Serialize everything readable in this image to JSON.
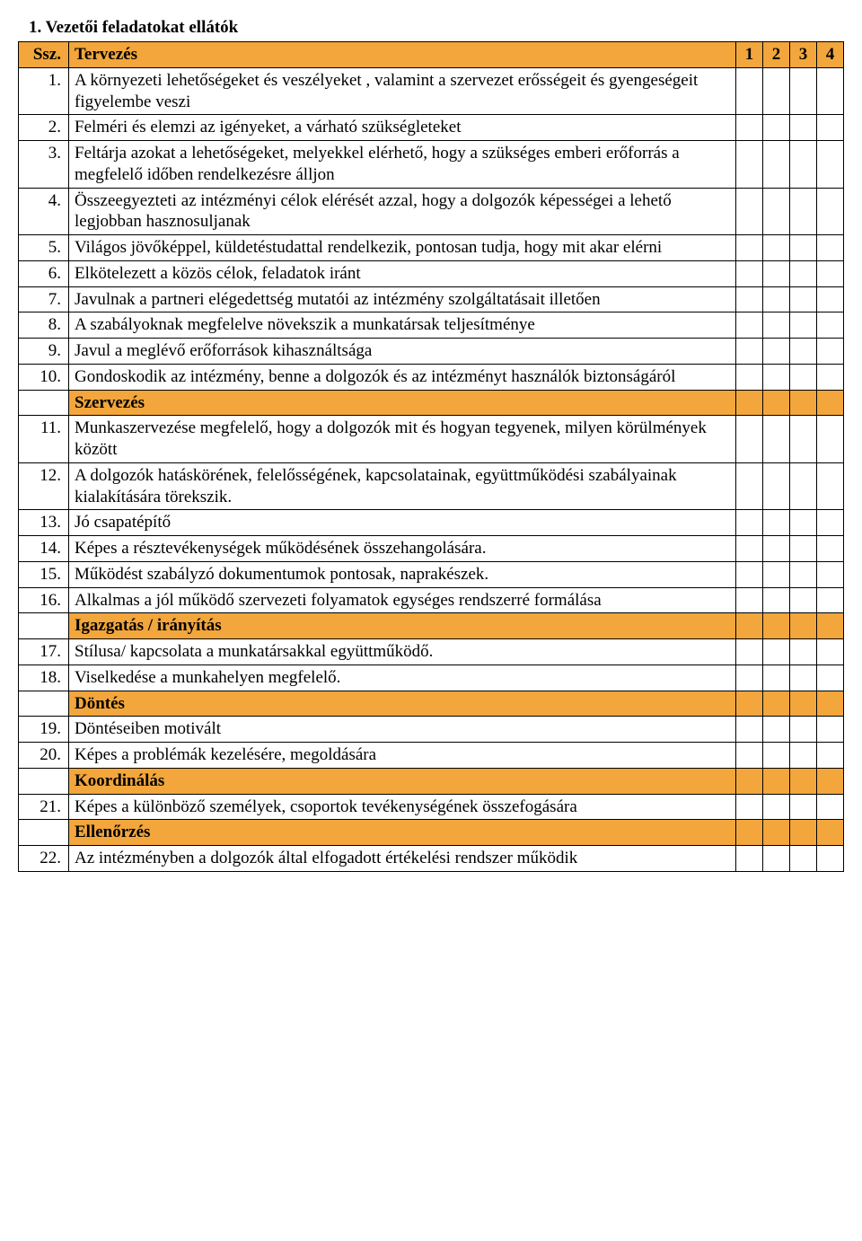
{
  "heading": "1. Vezetői feladatokat ellátók",
  "header": {
    "num": "Ssz.",
    "text": "Tervezés",
    "s1": "1",
    "s2": "2",
    "s3": "3",
    "s4": "4"
  },
  "rows": [
    {
      "num": "1.",
      "text": "A környezeti lehetőségeket és veszélyeket , valamint a szervezet erősségeit és gyengeségeit figyelembe veszi"
    },
    {
      "num": "2.",
      "text": "Felméri és elemzi az igényeket, a várható szükségleteket"
    },
    {
      "num": "3.",
      "text": "Feltárja azokat a lehetőségeket, melyekkel elérhető, hogy a szükséges emberi erőforrás a megfelelő időben rendelkezésre álljon"
    },
    {
      "num": "4.",
      "text": "Összeegyezteti az intézményi célok elérését azzal, hogy a dolgozók képességei a lehető legjobban hasznosuljanak"
    },
    {
      "num": "5.",
      "text": "Világos jövőképpel, küldetéstudattal rendelkezik, pontosan tudja, hogy mit akar elérni"
    },
    {
      "num": "6.",
      "text": "Elkötelezett a közös célok, feladatok iránt"
    },
    {
      "num": "7.",
      "text": "Javulnak a partneri elégedettség mutatói az intézmény szolgáltatásait illetően"
    },
    {
      "num": "8.",
      "text": "A szabályoknak megfelelve növekszik a munkatársak teljesítménye"
    },
    {
      "num": "9.",
      "text": "Javul  a meglévő erőforrások kihasználtsága"
    },
    {
      "num": "10.",
      "text": "Gondoskodik az intézmény, benne a dolgozók és az intézményt használók biztonságáról"
    },
    {
      "section": true,
      "text": "Szervezés"
    },
    {
      "num": "11.",
      "text": "Munkaszervezése megfelelő, hogy a dolgozók mit és hogyan tegyenek, milyen körülmények között"
    },
    {
      "num": "12.",
      "text": "A dolgozók hatáskörének, felelősségének, kapcsolatainak, együttműködési szabályainak kialakítására törekszik."
    },
    {
      "num": "13.",
      "text": "Jó csapatépítő"
    },
    {
      "num": "14.",
      "text": "Képes a résztevékenységek működésének összehangolására."
    },
    {
      "num": "15.",
      "text": "Működést szabályzó dokumentumok pontosak, naprakészek."
    },
    {
      "num": "16.",
      "text": "Alkalmas a jól működő szervezeti folyamatok egységes rendszerré formálása"
    },
    {
      "section": true,
      "text": "Igazgatás / irányítás"
    },
    {
      "num": "17.",
      "text": "Stílusa/ kapcsolata a munkatársakkal együttműködő."
    },
    {
      "num": "18.",
      "text": "Viselkedése a munkahelyen megfelelő."
    },
    {
      "section": true,
      "text": "Döntés"
    },
    {
      "num": "19.",
      "text": "Döntéseiben motivált"
    },
    {
      "num": "20.",
      "text": "Képes a problémák kezelésére, megoldására"
    },
    {
      "section": true,
      "text": "Koordinálás"
    },
    {
      "num": "21.",
      "text": "Képes a különböző személyek, csoportok tevékenységének összefogására"
    },
    {
      "section": true,
      "text": "Ellenőrzés"
    },
    {
      "num": "22.",
      "text": "Az intézményben a dolgozók által elfogadott értékelési rendszer működik"
    }
  ],
  "colors": {
    "section_bg": "#f2a63b",
    "border": "#000000",
    "text": "#000000",
    "page_bg": "#ffffff"
  },
  "font": {
    "family": "Times New Roman",
    "size_pt": 14
  }
}
